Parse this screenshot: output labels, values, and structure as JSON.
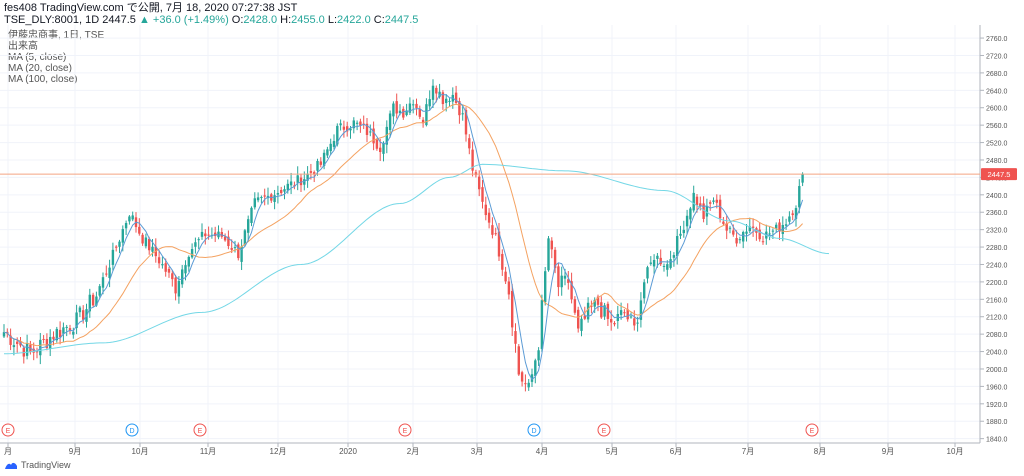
{
  "header": {
    "line1": "fes408 TradingView.com で公開, 7月 18, 2020 07:27:38 JST",
    "symbol": "TSE_DLY:8001, 1D 2447.5",
    "change": "▲ +36.0 (+1.49%)",
    "ohlc_o_label": "O:",
    "ohlc_o": "2428.0",
    "ohlc_h_label": "H:",
    "ohlc_h": "2455.0",
    "ohlc_l_label": "L:",
    "ohlc_l": "2422.0",
    "ohlc_c_label": "C:",
    "ohlc_c": "2447.5"
  },
  "legend": {
    "name": "伊藤忠商事, 1日, TSE",
    "volume": "出来高",
    "ma5": "MA (5, close)",
    "ma20": "MA (20, close)",
    "ma100": "MA (100, close)"
  },
  "footer": {
    "brand": "TradingView"
  },
  "colors": {
    "up": "#26a69a",
    "down": "#ef5350",
    "ma5": "#5b9bd5",
    "ma20": "#f4a261",
    "ma100": "#73d7e6",
    "last_price_line": "#f4a582",
    "last_price_label": "#ef5350"
  },
  "chart_data": {
    "type": "candlestick",
    "title": "伊藤忠商事, 1日, TSE",
    "y_axis": {
      "ticks": [
        1840,
        1880,
        1920,
        1960,
        2000,
        2040,
        2080,
        2120,
        2160,
        2200,
        2240,
        2280,
        2320,
        2360,
        2400,
        2440,
        2480,
        2520,
        2560,
        2600,
        2640,
        2680,
        2720,
        2760
      ],
      "ylim": [
        1830,
        2790
      ],
      "position": "right"
    },
    "x_axis": {
      "labels": [
        "月",
        "9月",
        "10月",
        "11月",
        "12月",
        "2020",
        "2月",
        "3月",
        "4月",
        "5月",
        "6月",
        "7月",
        "8月",
        "9月",
        "10月"
      ]
    },
    "last_price": {
      "value": 2447.5,
      "label": "2447.5"
    },
    "event_markers": [
      {
        "label": "E",
        "x": "月"
      },
      {
        "label": "D",
        "x": "10月"
      },
      {
        "label": "E",
        "x": "11月"
      },
      {
        "label": "E",
        "x": "2月"
      },
      {
        "label": "D",
        "x": "4月"
      },
      {
        "label": "E",
        "x": "5月"
      },
      {
        "label": "E",
        "x": "8月"
      }
    ],
    "close_anchors": [
      [
        0,
        2085
      ],
      [
        8,
        2035
      ],
      [
        15,
        2080
      ],
      [
        22,
        2110
      ],
      [
        28,
        2170
      ],
      [
        33,
        2260
      ],
      [
        38,
        2360
      ],
      [
        42,
        2300
      ],
      [
        47,
        2250
      ],
      [
        52,
        2190
      ],
      [
        56,
        2270
      ],
      [
        61,
        2310
      ],
      [
        66,
        2305
      ],
      [
        71,
        2265
      ],
      [
        76,
        2380
      ],
      [
        81,
        2400
      ],
      [
        86,
        2420
      ],
      [
        91,
        2440
      ],
      [
        96,
        2470
      ],
      [
        101,
        2550
      ],
      [
        106,
        2565
      ],
      [
        110,
        2545
      ],
      [
        114,
        2510
      ],
      [
        118,
        2600
      ],
      [
        121,
        2590
      ],
      [
        124,
        2620
      ],
      [
        127,
        2570
      ],
      [
        130,
        2660
      ],
      [
        133,
        2620
      ],
      [
        136,
        2630
      ],
      [
        139,
        2580
      ],
      [
        142,
        2460
      ],
      [
        145,
        2380
      ],
      [
        149,
        2300
      ],
      [
        153,
        2180
      ],
      [
        156,
        1990
      ],
      [
        159,
        1950
      ],
      [
        162,
        2060
      ],
      [
        165,
        2300
      ],
      [
        168,
        2190
      ],
      [
        171,
        2200
      ],
      [
        174,
        2080
      ],
      [
        177,
        2130
      ],
      [
        180,
        2150
      ],
      [
        184,
        2100
      ],
      [
        188,
        2130
      ],
      [
        191,
        2090
      ],
      [
        194,
        2200
      ],
      [
        197,
        2260
      ],
      [
        201,
        2240
      ],
      [
        205,
        2310
      ],
      [
        209,
        2400
      ],
      [
        212,
        2350
      ],
      [
        215,
        2390
      ],
      [
        219,
        2320
      ],
      [
        222,
        2300
      ],
      [
        226,
        2330
      ],
      [
        230,
        2305
      ],
      [
        234,
        2320
      ],
      [
        237,
        2340
      ],
      [
        240,
        2380
      ],
      [
        242,
        2447.5
      ]
    ],
    "ma100_anchors": [
      [
        0,
        2035
      ],
      [
        30,
        2060
      ],
      [
        60,
        2130
      ],
      [
        90,
        2240
      ],
      [
        120,
        2380
      ],
      [
        135,
        2440
      ],
      [
        145,
        2470
      ],
      [
        170,
        2455
      ],
      [
        200,
        2410
      ],
      [
        220,
        2340
      ],
      [
        235,
        2300
      ],
      [
        250,
        2265
      ]
    ]
  }
}
